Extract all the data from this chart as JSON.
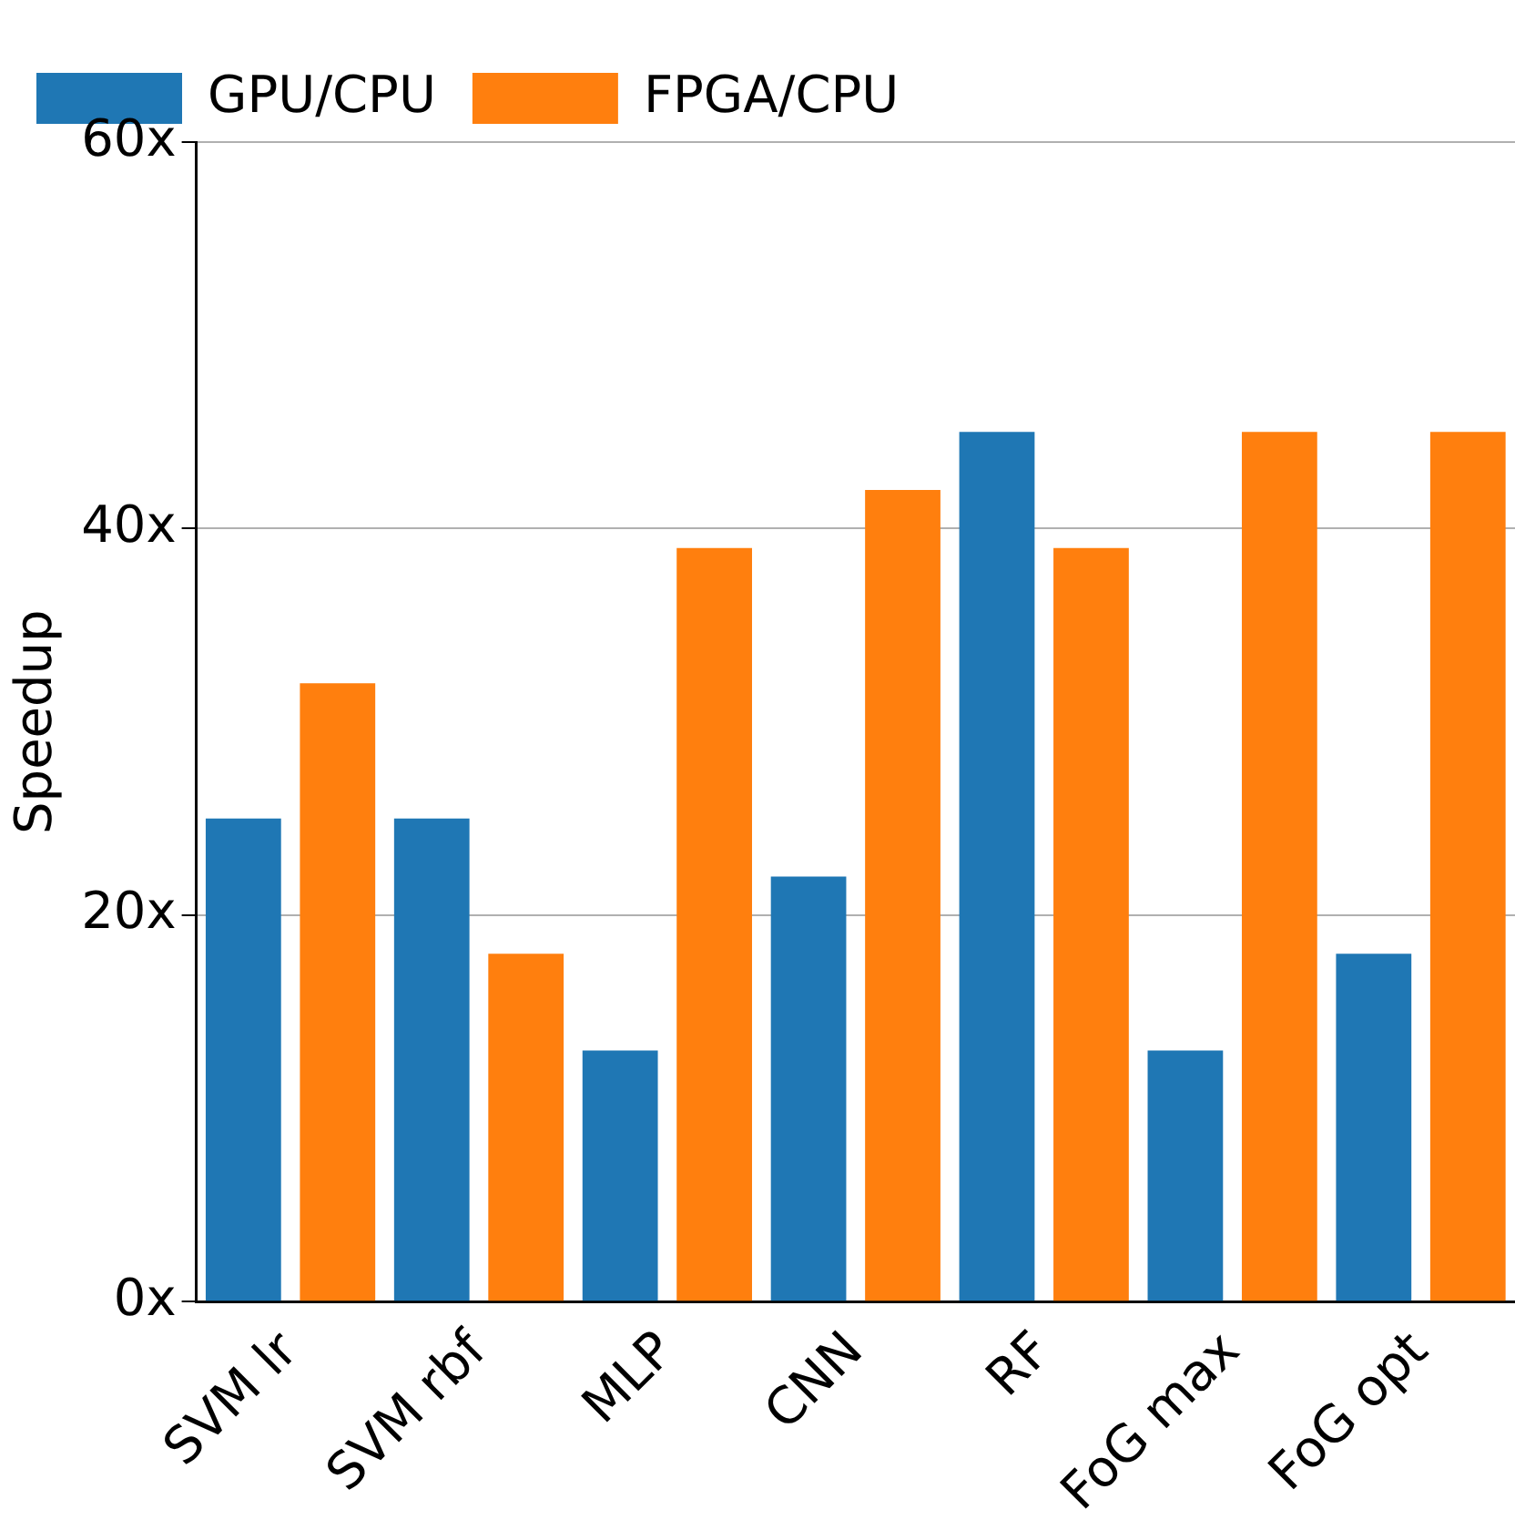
{
  "chart_data": {
    "type": "bar",
    "ylabel": "Speedup",
    "categories": [
      "SVM lr",
      "SVM rbf",
      "MLP",
      "CNN",
      "RF",
      "FoG max",
      "FoG opt"
    ],
    "series": [
      {
        "name": "GPU/CPU",
        "color": "#1f77b4",
        "values": [
          25,
          25,
          13,
          22,
          45,
          13,
          18
        ]
      },
      {
        "name": "FPGA/CPU",
        "color": "#ff7f0e",
        "values": [
          32,
          18,
          39,
          42,
          39,
          45,
          45
        ]
      }
    ],
    "ylim": [
      0,
      60
    ],
    "yticks": [
      {
        "value": 0,
        "label": "0x"
      },
      {
        "value": 20,
        "label": "20x"
      },
      {
        "value": 40,
        "label": "40x"
      },
      {
        "value": 60,
        "label": "60x"
      }
    ],
    "grid": "y",
    "legend": "top left"
  }
}
